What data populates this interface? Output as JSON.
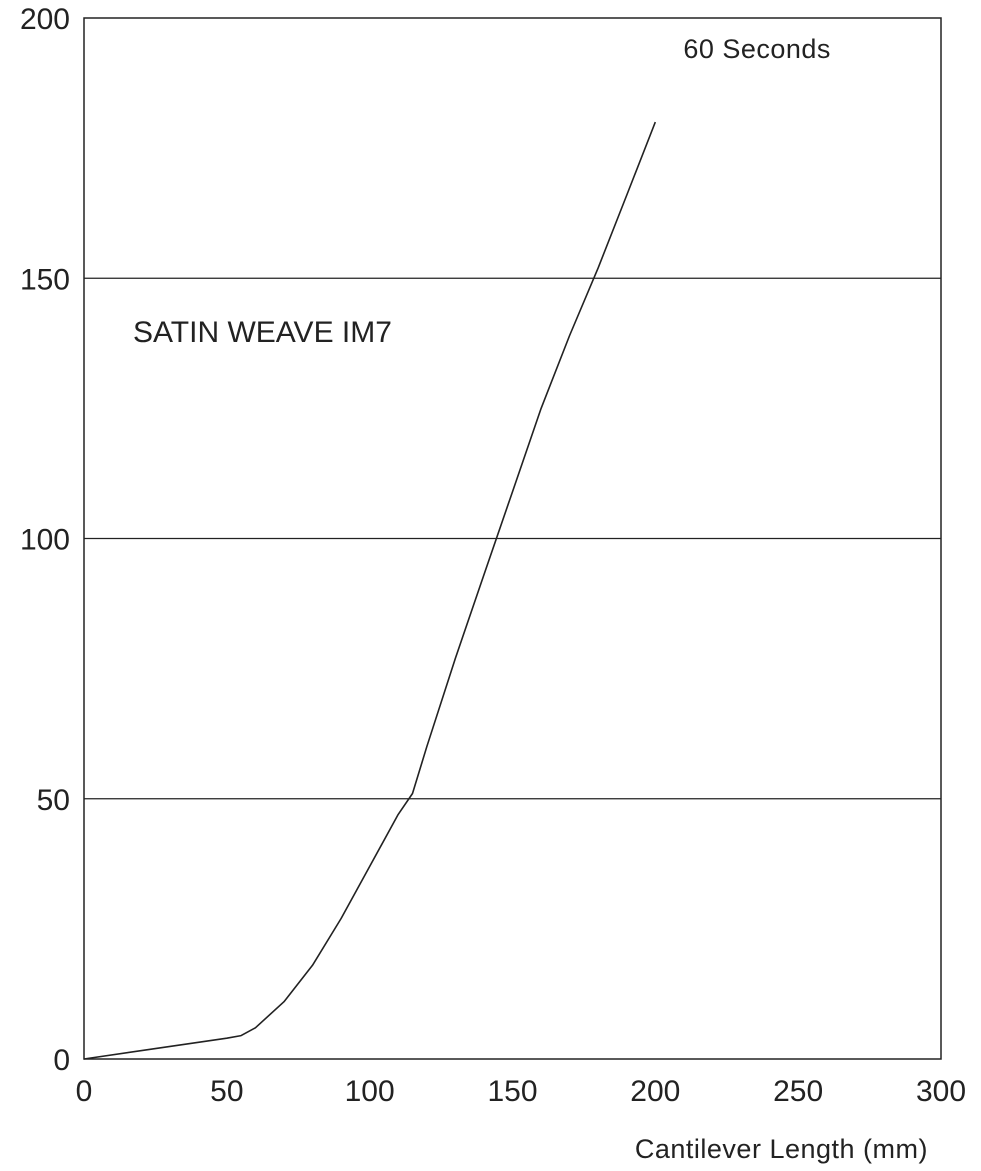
{
  "chart_data": {
    "type": "line",
    "title": "",
    "xlabel": "Cantilever Length (mm)",
    "ylabel": "",
    "xlim": [
      0,
      300
    ],
    "ylim": [
      0,
      200
    ],
    "xticks": [
      0,
      50,
      100,
      150,
      200,
      250,
      300
    ],
    "yticks": [
      0,
      50,
      100,
      150,
      200
    ],
    "grid": "horizontal",
    "legend": "none",
    "annotations": [
      "SATIN WEAVE IM7"
    ],
    "series": [
      {
        "name": "60 Seconds",
        "x": [
          0,
          25,
          50,
          55,
          60,
          70,
          80,
          90,
          100,
          110,
          115,
          120,
          130,
          140,
          150,
          160,
          170,
          180,
          190,
          200
        ],
        "y": [
          0,
          2,
          4,
          4.5,
          6,
          11,
          18,
          27,
          37,
          47,
          51,
          60,
          77,
          93,
          109,
          125,
          139,
          152,
          166,
          180
        ]
      }
    ]
  }
}
